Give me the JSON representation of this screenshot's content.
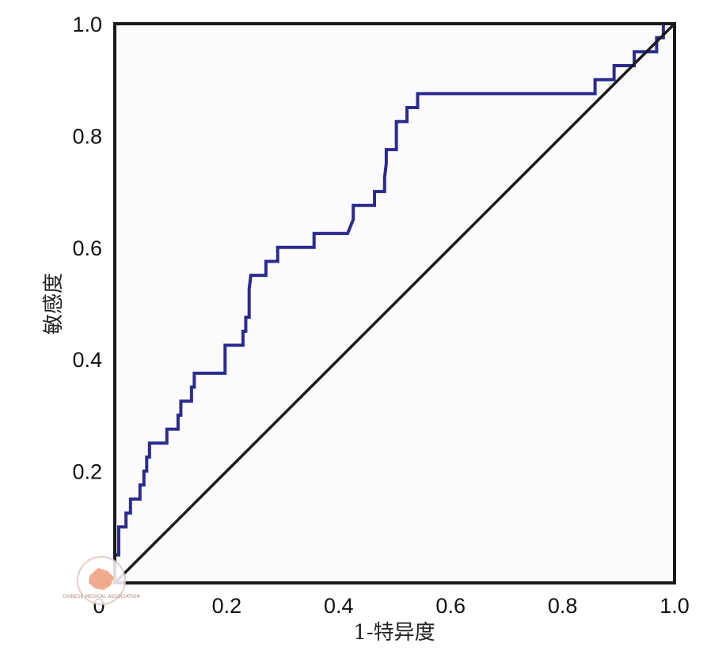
{
  "chart_data": {
    "type": "line",
    "title": "",
    "xlabel": "1-特异度",
    "ylabel": "敏感度",
    "xlim": [
      0,
      1
    ],
    "ylim": [
      0,
      1
    ],
    "x_ticks": [
      "0",
      "0.2",
      "0.4",
      "0.6",
      "0.8",
      "1.0"
    ],
    "y_ticks": [
      "0.2",
      "0.4",
      "0.6",
      "0.8",
      "1.0"
    ],
    "grid": false,
    "legend": "none",
    "series": [
      {
        "kind": "roc-step",
        "color": "#2b2b8f",
        "points": [
          [
            0,
            0
          ],
          [
            0,
            0.05
          ],
          [
            0.007,
            0.05
          ],
          [
            0.007,
            0.1
          ],
          [
            0.02,
            0.1
          ],
          [
            0.02,
            0.125
          ],
          [
            0.028,
            0.125
          ],
          [
            0.028,
            0.15
          ],
          [
            0.045,
            0.15
          ],
          [
            0.045,
            0.175
          ],
          [
            0.052,
            0.175
          ],
          [
            0.052,
            0.2
          ],
          [
            0.057,
            0.2
          ],
          [
            0.057,
            0.225
          ],
          [
            0.062,
            0.225
          ],
          [
            0.062,
            0.25
          ],
          [
            0.093,
            0.25
          ],
          [
            0.093,
            0.275
          ],
          [
            0.113,
            0.275
          ],
          [
            0.113,
            0.3
          ],
          [
            0.118,
            0.3
          ],
          [
            0.118,
            0.325
          ],
          [
            0.137,
            0.325
          ],
          [
            0.137,
            0.35
          ],
          [
            0.142,
            0.35
          ],
          [
            0.142,
            0.375
          ],
          [
            0.197,
            0.375
          ],
          [
            0.197,
            0.425
          ],
          [
            0.229,
            0.425
          ],
          [
            0.229,
            0.45
          ],
          [
            0.234,
            0.45
          ],
          [
            0.234,
            0.475
          ],
          [
            0.24,
            0.475
          ],
          [
            0.24,
            0.525
          ],
          [
            0.243,
            0.55
          ],
          [
            0.27,
            0.55
          ],
          [
            0.27,
            0.575
          ],
          [
            0.291,
            0.575
          ],
          [
            0.291,
            0.6
          ],
          [
            0.356,
            0.6
          ],
          [
            0.356,
            0.625
          ],
          [
            0.416,
            0.625
          ],
          [
            0.426,
            0.65
          ],
          [
            0.426,
            0.675
          ],
          [
            0.464,
            0.675
          ],
          [
            0.464,
            0.7
          ],
          [
            0.482,
            0.7
          ],
          [
            0.482,
            0.725
          ],
          [
            0.485,
            0.75
          ],
          [
            0.485,
            0.775
          ],
          [
            0.503,
            0.775
          ],
          [
            0.503,
            0.825
          ],
          [
            0.522,
            0.825
          ],
          [
            0.522,
            0.85
          ],
          [
            0.541,
            0.85
          ],
          [
            0.541,
            0.875
          ],
          [
            0.858,
            0.875
          ],
          [
            0.858,
            0.9
          ],
          [
            0.892,
            0.9
          ],
          [
            0.892,
            0.925
          ],
          [
            0.928,
            0.925
          ],
          [
            0.928,
            0.95
          ],
          [
            0.968,
            0.95
          ],
          [
            0.968,
            0.975
          ],
          [
            0.98,
            0.975
          ],
          [
            0.98,
            1.0
          ],
          [
            1.0,
            1.0
          ]
        ]
      },
      {
        "kind": "reference-line",
        "color": "#1a1a1a",
        "points": [
          [
            0,
            0
          ],
          [
            1,
            1
          ]
        ]
      }
    ],
    "frame_color": "#1a1a1a",
    "plot_background": "#fbfbfd"
  },
  "watermark": {
    "label": "CHINESE MEDICAL ASSOCIATION",
    "fill_color": "#f0a27f"
  }
}
